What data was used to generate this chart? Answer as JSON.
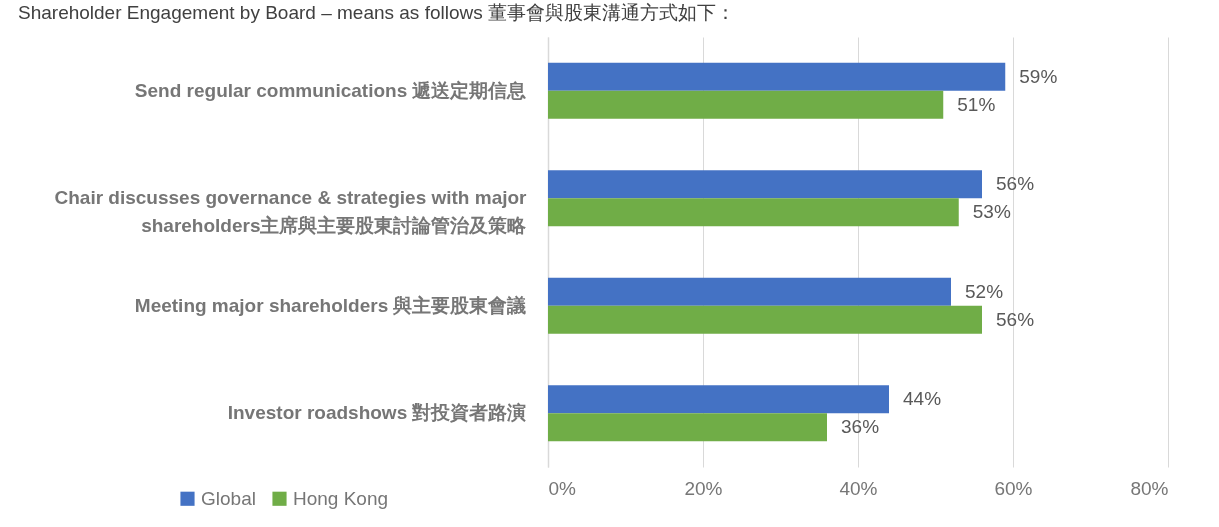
{
  "chart_data": {
    "type": "bar",
    "orientation": "horizontal",
    "title": "Shareholder Engagement by Board – means as follows 董事會與股東溝通方式如下：",
    "categories": [
      "Send regular communications  遞送定期信息",
      "Chair discusses governance & strategies with major shareholders主席與主要股東討論管治及策略",
      "Meeting major shareholders  與主要股東會議",
      "Investor roadshows  對投資者路演"
    ],
    "series": [
      {
        "name": "Global",
        "color": "#4472c4",
        "values": [
          59,
          56,
          52,
          44
        ],
        "value_labels": [
          "59%",
          "56%",
          "52%",
          "44%"
        ]
      },
      {
        "name": "Hong Kong",
        "color": "#70ad47",
        "values": [
          51,
          53,
          56,
          36
        ],
        "value_labels": [
          "51%",
          "53%",
          "56%",
          "36%"
        ]
      }
    ],
    "xlim": [
      0,
      80
    ],
    "xticks": [
      {
        "value": 0,
        "label": "0%"
      },
      {
        "value": 20,
        "label": "20%"
      },
      {
        "value": 40,
        "label": "40%"
      },
      {
        "value": 60,
        "label": "60%"
      },
      {
        "value": 80,
        "label": "80%"
      }
    ],
    "grid": "x",
    "legend": "bottom left"
  }
}
